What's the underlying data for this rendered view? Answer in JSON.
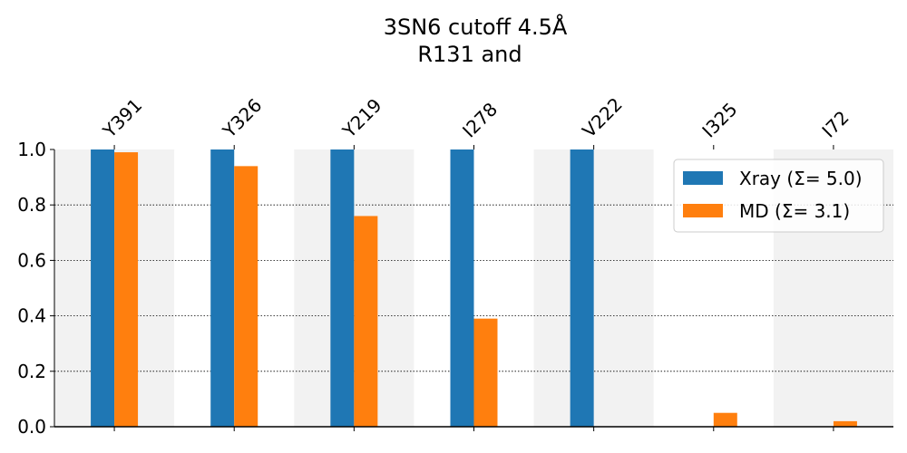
{
  "chart_data": {
    "type": "bar",
    "title_line1": "3SN6 cutoff 4.5Å",
    "title_line2": "R131 and",
    "xlabel": "",
    "ylabel": "",
    "categories": [
      "Y391",
      "Y326",
      "Y219",
      "I278",
      "V222",
      "I325",
      "I72"
    ],
    "series": [
      {
        "name": "Xray (Σ= 5.0)",
        "color": "#1f77b4",
        "values": [
          1.0,
          1.0,
          1.0,
          1.0,
          1.0,
          0.0,
          0.0
        ]
      },
      {
        "name": "MD (Σ= 3.1)",
        "color": "#ff7f0e",
        "values": [
          0.99,
          0.94,
          0.76,
          0.39,
          0.0,
          0.05,
          0.02
        ]
      }
    ],
    "ylim": [
      0,
      1
    ],
    "yticks": [
      "0.0",
      "0.2",
      "0.4",
      "0.6",
      "0.8",
      "1.0"
    ],
    "grid": "horizontal dotted",
    "legend_position": "top-right",
    "tick_labels_position": "top",
    "background_bands": [
      "#f2f2f2",
      "#ffffff"
    ]
  }
}
